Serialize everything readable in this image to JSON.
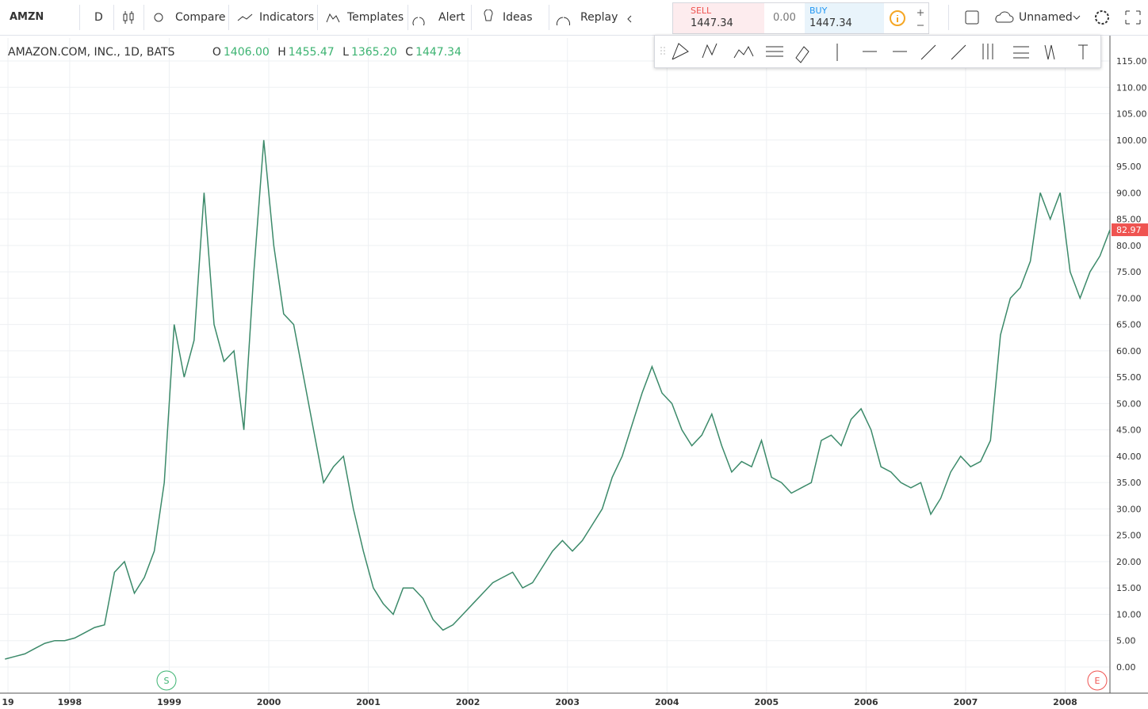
{
  "toolbar": {
    "symbol": "AMZN",
    "interval": "D",
    "buttons": [
      "Compare",
      "Indicators",
      "Templates",
      "Alert",
      "Ideas",
      "Replay"
    ],
    "sell_label": "SELL",
    "sell_price": "1447.34",
    "spread": "0.00",
    "buy_label": "BUY",
    "buy_price": "1447.34",
    "layout_name": "Unnamed"
  },
  "legend": {
    "title": "AMAZON.COM, INC., 1D, BATS",
    "o_label": "O",
    "o": "1406.00",
    "h_label": "H",
    "h": "1455.47",
    "l_label": "L",
    "l": "1365.20",
    "c_label": "C",
    "c": "1447.34"
  },
  "markers": [
    "S",
    "E"
  ],
  "chart_data": {
    "type": "line",
    "color": "#3c8a6a",
    "last_price": 82.97,
    "last_color": "#ef5350",
    "grid": true,
    "x": [
      1997.35,
      1997.45,
      1997.55,
      1997.65,
      1997.75,
      1997.85,
      1997.95,
      1998.05,
      1998.15,
      1998.25,
      1998.35,
      1998.45,
      1998.55,
      1998.65,
      1998.75,
      1998.85,
      1998.95,
      1999.05,
      1999.15,
      1999.25,
      1999.35,
      1999.45,
      1999.55,
      1999.65,
      1999.75,
      1999.85,
      1999.95,
      2000.05,
      2000.15,
      2000.25,
      2000.35,
      2000.45,
      2000.55,
      2000.65,
      2000.75,
      2000.85,
      2000.95,
      2001.05,
      2001.15,
      2001.25,
      2001.35,
      2001.45,
      2001.55,
      2001.65,
      2001.75,
      2001.85,
      2001.95,
      2002.05,
      2002.15,
      2002.25,
      2002.35,
      2002.45,
      2002.55,
      2002.65,
      2002.75,
      2002.85,
      2002.95,
      2003.05,
      2003.15,
      2003.25,
      2003.35,
      2003.45,
      2003.55,
      2003.65,
      2003.75,
      2003.85,
      2003.95,
      2004.05,
      2004.15,
      2004.25,
      2004.35,
      2004.45,
      2004.55,
      2004.65,
      2004.75,
      2004.85,
      2004.95,
      2005.05,
      2005.15,
      2005.25,
      2005.35,
      2005.45,
      2005.55,
      2005.65,
      2005.75,
      2005.85,
      2005.95,
      2006.05,
      2006.15,
      2006.25,
      2006.35,
      2006.45,
      2006.55,
      2006.65,
      2006.75,
      2006.85,
      2006.95,
      2007.05,
      2007.15,
      2007.25,
      2007.35,
      2007.45,
      2007.55,
      2007.65,
      2007.75,
      2007.85,
      2007.95,
      2008.05,
      2008.15,
      2008.25,
      2008.35,
      2008.45
    ],
    "values": [
      1.5,
      2,
      2.5,
      3.5,
      4.5,
      5,
      5,
      5.5,
      6.5,
      7.5,
      8,
      18,
      20,
      14,
      17,
      22,
      35,
      65,
      55,
      62,
      90,
      65,
      58,
      60,
      45,
      75,
      100,
      80,
      67,
      65,
      55,
      45,
      35,
      38,
      40,
      30,
      22,
      15,
      12,
      10,
      15,
      15,
      13,
      9,
      7,
      8,
      10,
      12,
      14,
      16,
      17,
      18,
      15,
      16,
      19,
      22,
      24,
      22,
      24,
      27,
      30,
      36,
      40,
      46,
      52,
      57,
      52,
      50,
      45,
      42,
      44,
      48,
      42,
      37,
      39,
      38,
      43,
      36,
      35,
      33,
      34,
      35,
      43,
      44,
      42,
      47,
      49,
      45,
      38,
      37,
      35,
      34,
      35,
      29,
      32,
      37,
      40,
      38,
      39,
      43,
      63,
      70,
      72,
      77,
      90,
      85,
      90,
      75,
      70,
      75,
      78,
      82.97
    ],
    "xlim": [
      1997.3,
      2008.45
    ],
    "ylim": [
      -4.96,
      119.36
    ],
    "xticks": [
      {
        "value": 1997.38,
        "label": "19"
      },
      1998,
      1999,
      2000,
      2001,
      2002,
      2003,
      2004,
      2005,
      2006,
      2007,
      2008
    ],
    "yticks": [
      {
        "value": 0,
        "label": "0.00"
      },
      {
        "value": 5,
        "label": "5.00"
      },
      {
        "value": 10,
        "label": "10.00"
      },
      {
        "value": 15,
        "label": "15.00"
      },
      {
        "value": 20,
        "label": "20.00"
      },
      {
        "value": 25,
        "label": "25.00"
      },
      {
        "value": 30,
        "label": "30.00"
      },
      {
        "value": 35,
        "label": "35.00"
      },
      {
        "value": 40,
        "label": "40.00"
      },
      {
        "value": 45,
        "label": "45.00"
      },
      {
        "value": 50,
        "label": "50.00"
      },
      {
        "value": 55,
        "label": "55.00"
      },
      {
        "value": 60,
        "label": "60.00"
      },
      {
        "value": 65,
        "label": "65.00"
      },
      {
        "value": 70,
        "label": "70.00"
      },
      {
        "value": 75,
        "label": "75.00"
      },
      {
        "value": 80,
        "label": "80.00"
      },
      {
        "value": 85,
        "label": "85.00"
      },
      {
        "value": 90,
        "label": "90.00"
      },
      {
        "value": 95,
        "label": "95.00"
      },
      {
        "value": 100,
        "label": "100.00"
      },
      {
        "value": 105,
        "label": "105.00"
      },
      {
        "value": 110,
        "label": "110.00"
      },
      {
        "value": 115,
        "label": "115.00"
      }
    ]
  }
}
